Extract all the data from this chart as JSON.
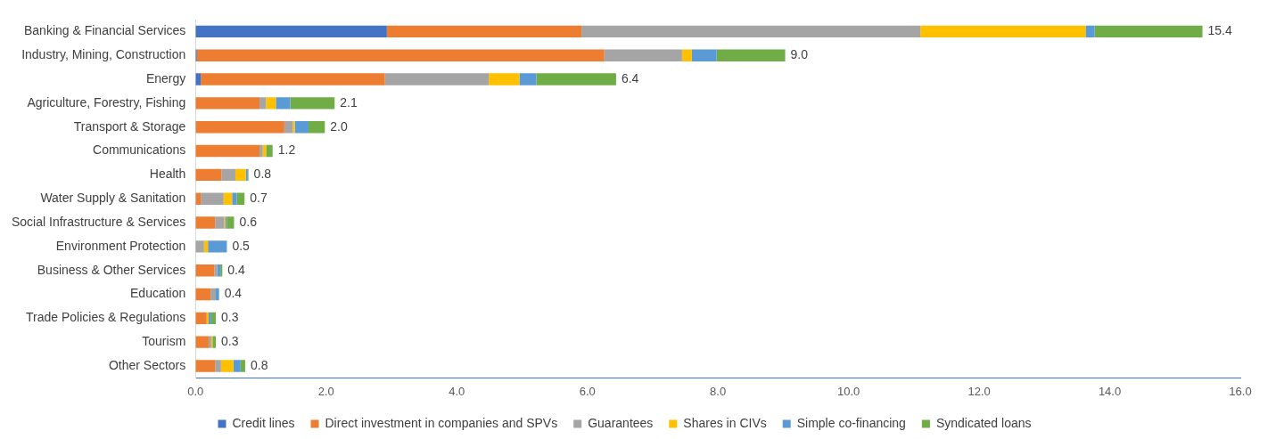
{
  "chart_data": {
    "type": "bar",
    "orientation": "horizontal",
    "stacked": true,
    "categories": [
      "Banking & Financial Services",
      "Industry, Mining, Construction",
      "Energy",
      "Agriculture, Forestry, Fishing",
      "Transport & Storage",
      "Communications",
      "Health",
      "Water Supply & Sanitation",
      "Social Infrastructure & Services",
      "Environment Protection",
      "Business & Other Services",
      "Education",
      "Trade Policies & Regulations",
      "Tourism",
      "Other Sectors"
    ],
    "series": [
      {
        "name": "Credit lines",
        "color": "#4472c4",
        "values": [
          2.93,
          0.02,
          0.08,
          0,
          0,
          0,
          0,
          0,
          0,
          0,
          0,
          0,
          0,
          0,
          0
        ]
      },
      {
        "name": "Direct investment in companies and SPVs",
        "color": "#ed7d31",
        "values": [
          2.98,
          6.24,
          2.82,
          0.98,
          1.36,
          0.98,
          0.4,
          0.08,
          0.3,
          0,
          0.29,
          0.23,
          0.17,
          0.2,
          0.3
        ]
      },
      {
        "name": "Guarantees",
        "color": "#a5a5a5",
        "values": [
          5.19,
          1.19,
          1.59,
          0.1,
          0.13,
          0.05,
          0.21,
          0.35,
          0.14,
          0.13,
          0.04,
          0.08,
          0,
          0.04,
          0.09
        ]
      },
      {
        "name": "Shares in CIVs",
        "color": "#ffc000",
        "values": [
          2.53,
          0.15,
          0.47,
          0.15,
          0.03,
          0.05,
          0.16,
          0.13,
          0.02,
          0.06,
          0,
          0,
          0.03,
          0.02,
          0.19
        ]
      },
      {
        "name": "Simple co-financing",
        "color": "#5b9bd5",
        "values": [
          0.14,
          0.38,
          0.26,
          0.22,
          0.21,
          null,
          0.03,
          0.07,
          0.02,
          0.29,
          0.05,
          0.05,
          0.04,
          0,
          0.11
        ]
      },
      {
        "name": "Syndicated loans",
        "color": "#70ad47",
        "values": [
          1.65,
          1.05,
          1.22,
          0.68,
          0.25,
          0.1,
          0.01,
          0.12,
          0.11,
          0,
          0.03,
          null,
          0.07,
          0.05,
          0.07
        ]
      }
    ],
    "totals": [
      "15.4",
      "9.0",
      "6.4",
      "2.1",
      "2.0",
      "1.2",
      "0.8",
      "0.7",
      "0.6",
      "0.5",
      "0.4",
      "0.4",
      "0.3",
      "0.3",
      "0.8"
    ],
    "xlim": [
      0,
      16
    ],
    "xticks": [
      {
        "value": 0,
        "label": "0.0"
      },
      {
        "value": 2,
        "label": "2.0"
      },
      {
        "value": 4,
        "label": "4.0"
      },
      {
        "value": 6,
        "label": "6.0"
      },
      {
        "value": 8,
        "label": "8.0"
      },
      {
        "value": 10,
        "label": "10.0"
      },
      {
        "value": 12,
        "label": "12.0"
      },
      {
        "value": 14,
        "label": "14.0"
      },
      {
        "value": 16,
        "label": "16.0"
      }
    ],
    "grid": false,
    "legend": "bottom"
  }
}
